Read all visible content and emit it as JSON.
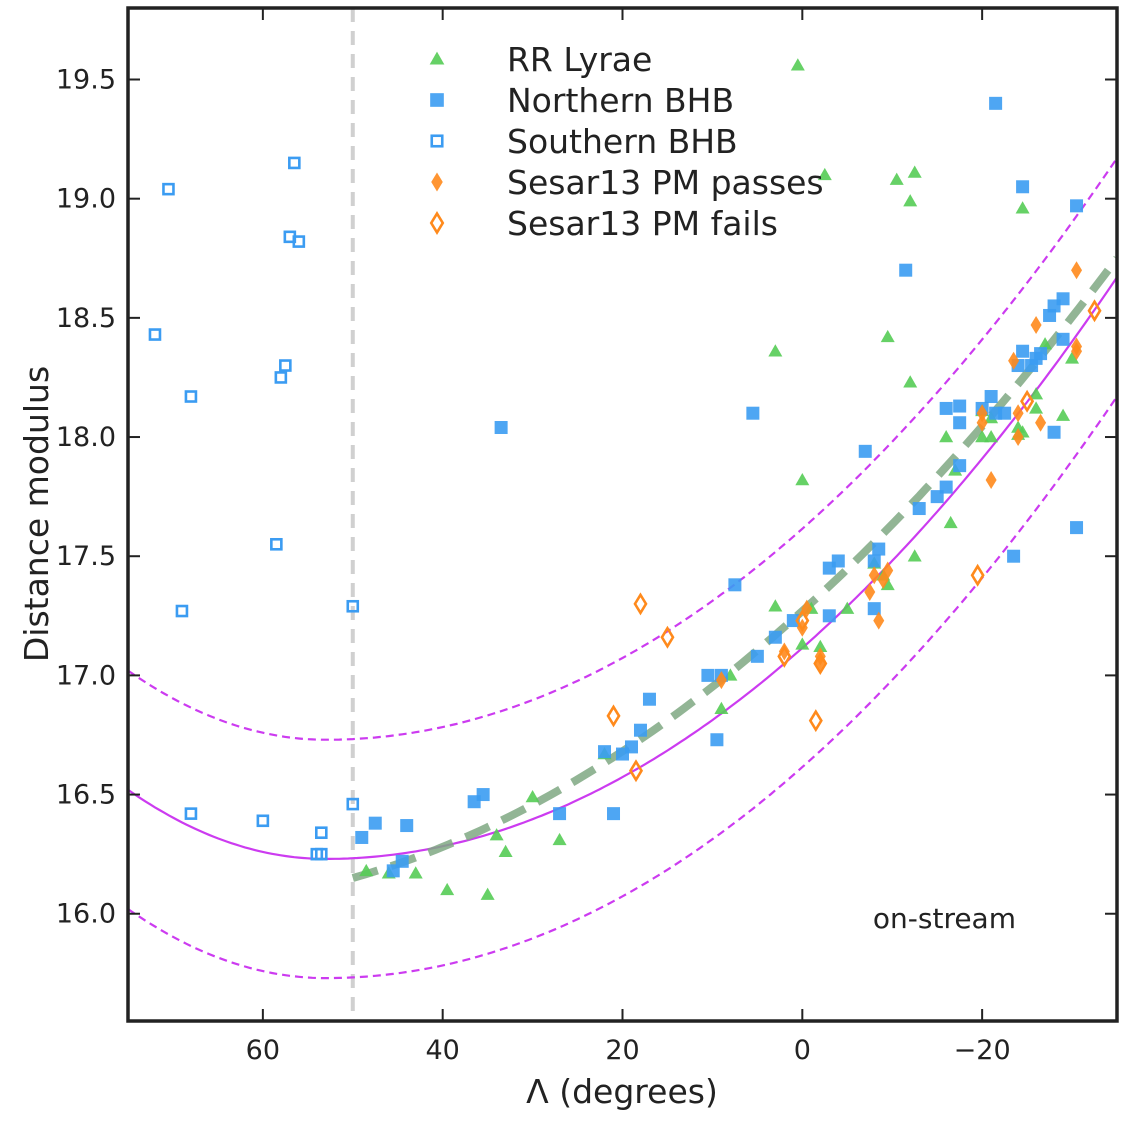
{
  "chart_data": {
    "type": "scatter",
    "xlabel": "Λ (degrees)",
    "ylabel": "Distance modulus",
    "xlim": [
      75,
      -35
    ],
    "ylim": [
      15.55,
      19.8
    ],
    "x_ticks": [
      60,
      40,
      20,
      0,
      -20
    ],
    "x_tick_labels": [
      "60",
      "40",
      "20",
      "0",
      "−20"
    ],
    "y_ticks": [
      16.0,
      16.5,
      17.0,
      17.5,
      18.0,
      18.5,
      19.0,
      19.5
    ],
    "y_tick_labels": [
      "16.0",
      "16.5",
      "17.0",
      "17.5",
      "18.0",
      "18.5",
      "19.0",
      "19.5"
    ],
    "grid": false,
    "legend_position": "top-center",
    "annotation": "on-stream",
    "vertical_line": {
      "x": 50,
      "style": "dashed",
      "color": "#d0d0d0"
    },
    "colors": {
      "rrl": "#55cc55",
      "bhb": "#3b9cf2",
      "sesar": "#ff8a1c",
      "model": "#cc3bf0",
      "fit": "#7fa882"
    },
    "series": [
      {
        "name": "RR Lyrae",
        "marker": "triangle",
        "filled": true,
        "points": [
          [
            0.5,
            19.56
          ],
          [
            -2.5,
            19.1
          ],
          [
            -10.5,
            19.08
          ],
          [
            -12.5,
            19.11
          ],
          [
            -12,
            18.99
          ],
          [
            -24.5,
            18.96
          ],
          [
            -9.5,
            18.42
          ],
          [
            3,
            18.36
          ],
          [
            -12,
            18.23
          ],
          [
            -27,
            18.39
          ],
          [
            -26,
            18.18
          ],
          [
            -30,
            18.33
          ],
          [
            -20,
            18.11
          ],
          [
            -21,
            18.08
          ],
          [
            -24,
            18.04
          ],
          [
            -20,
            18.0
          ],
          [
            -21,
            18.0
          ],
          [
            -16,
            18.0
          ],
          [
            -24,
            18.01
          ],
          [
            -29,
            18.09
          ],
          [
            -17,
            17.86
          ],
          [
            0,
            17.82
          ],
          [
            -16.5,
            17.64
          ],
          [
            -12.5,
            17.5
          ],
          [
            -9,
            17.42
          ],
          [
            -9.5,
            17.38
          ],
          [
            -8,
            17.47
          ],
          [
            3,
            17.29
          ],
          [
            -5,
            17.28
          ],
          [
            -1,
            17.28
          ],
          [
            0,
            17.13
          ],
          [
            -2,
            17.12
          ],
          [
            8,
            17.0
          ],
          [
            9,
            16.86
          ],
          [
            22,
            16.67
          ],
          [
            30,
            16.49
          ],
          [
            27,
            16.31
          ],
          [
            33,
            16.26
          ],
          [
            34,
            16.33
          ],
          [
            35,
            16.08
          ],
          [
            39.5,
            16.1
          ],
          [
            43,
            16.17
          ],
          [
            46,
            16.17
          ],
          [
            48.5,
            16.18
          ],
          [
            -24.5,
            18.02
          ],
          [
            -26,
            18.12
          ]
        ]
      },
      {
        "name": "Northern BHB",
        "marker": "square",
        "filled": true,
        "points": [
          [
            -21.5,
            19.4
          ],
          [
            -24.5,
            19.05
          ],
          [
            -30.5,
            18.97
          ],
          [
            -11.5,
            18.7
          ],
          [
            -29,
            18.58
          ],
          [
            -28,
            18.55
          ],
          [
            -27.5,
            18.51
          ],
          [
            -29,
            18.41
          ],
          [
            -24.5,
            18.36
          ],
          [
            -26.5,
            18.35
          ],
          [
            -25.5,
            18.3
          ],
          [
            -24,
            18.3
          ],
          [
            -26,
            18.33
          ],
          [
            -21,
            18.17
          ],
          [
            -21.5,
            18.1
          ],
          [
            -22.5,
            18.1
          ],
          [
            -20,
            18.12
          ],
          [
            -16,
            18.12
          ],
          [
            -17.5,
            18.13
          ],
          [
            -17.5,
            18.06
          ],
          [
            5.5,
            18.1
          ],
          [
            33.5,
            18.04
          ],
          [
            -7,
            17.94
          ],
          [
            -17.5,
            17.88
          ],
          [
            -16,
            17.79
          ],
          [
            -13,
            17.7
          ],
          [
            -15,
            17.75
          ],
          [
            -8.5,
            17.53
          ],
          [
            -8,
            17.48
          ],
          [
            -4,
            17.48
          ],
          [
            -3,
            17.45
          ],
          [
            -23.5,
            17.5
          ],
          [
            -30.5,
            17.62
          ],
          [
            -8,
            17.28
          ],
          [
            -3,
            17.25
          ],
          [
            7.5,
            17.38
          ],
          [
            1,
            17.23
          ],
          [
            3,
            17.16
          ],
          [
            5,
            17.08
          ],
          [
            10.5,
            17.0
          ],
          [
            9,
            17.0
          ],
          [
            17,
            16.9
          ],
          [
            9.5,
            16.73
          ],
          [
            18,
            16.77
          ],
          [
            19,
            16.7
          ],
          [
            20,
            16.67
          ],
          [
            22,
            16.68
          ],
          [
            21,
            16.42
          ],
          [
            27,
            16.42
          ],
          [
            35.5,
            16.5
          ],
          [
            36.5,
            16.47
          ],
          [
            44,
            16.37
          ],
          [
            47.5,
            16.38
          ],
          [
            49,
            16.32
          ],
          [
            45.5,
            16.18
          ],
          [
            44.5,
            16.22
          ],
          [
            -28,
            18.02
          ]
        ]
      },
      {
        "name": "Southern BHB",
        "marker": "square",
        "filled": false,
        "points": [
          [
            70.5,
            19.04
          ],
          [
            56.5,
            19.15
          ],
          [
            57,
            18.84
          ],
          [
            56,
            18.82
          ],
          [
            72,
            18.43
          ],
          [
            57.5,
            18.3
          ],
          [
            58,
            18.25
          ],
          [
            68,
            18.17
          ],
          [
            58.5,
            17.55
          ],
          [
            69,
            17.27
          ],
          [
            50,
            17.29
          ],
          [
            68,
            16.42
          ],
          [
            60,
            16.39
          ],
          [
            50,
            16.46
          ],
          [
            53.5,
            16.34
          ],
          [
            54,
            16.25
          ],
          [
            53.5,
            16.25
          ]
        ]
      },
      {
        "name": "Sesar13 PM passes",
        "marker": "diamond",
        "filled": true,
        "points": [
          [
            -30.5,
            18.7
          ],
          [
            -23.5,
            18.32
          ],
          [
            -26,
            18.47
          ],
          [
            -24,
            18.1
          ],
          [
            -26.5,
            18.06
          ],
          [
            -24,
            18.0
          ],
          [
            -20,
            18.1
          ],
          [
            -20,
            18.06
          ],
          [
            -21,
            17.82
          ],
          [
            -8,
            17.42
          ],
          [
            -9.5,
            17.44
          ],
          [
            -9,
            17.4
          ],
          [
            -7.5,
            17.35
          ],
          [
            -8.5,
            17.23
          ],
          [
            -0.5,
            17.28
          ],
          [
            0,
            17.2
          ],
          [
            2,
            17.1
          ],
          [
            -2,
            17.08
          ],
          [
            -2,
            17.06
          ],
          [
            9,
            16.98
          ],
          [
            -30.5,
            18.38
          ],
          [
            -30.5,
            18.36
          ]
        ]
      },
      {
        "name": "Sesar13 PM fails",
        "marker": "diamond",
        "filled": false,
        "points": [
          [
            -32.5,
            18.53
          ],
          [
            -25,
            18.15
          ],
          [
            -19.5,
            17.42
          ],
          [
            18,
            17.3
          ],
          [
            15,
            17.16
          ],
          [
            21,
            16.83
          ],
          [
            18.5,
            16.6
          ],
          [
            -1.5,
            16.81
          ],
          [
            -2,
            17.05
          ],
          [
            0,
            17.23
          ],
          [
            2,
            17.08
          ]
        ]
      }
    ],
    "lines": [
      {
        "name": "model-track",
        "style": "solid",
        "color": "#cc3bf0",
        "vertex": [
          53,
          16.23
        ],
        "points_at": [
          [
            75,
            16.52
          ],
          [
            -35,
            18.67
          ]
        ]
      },
      {
        "name": "model-upper",
        "style": "dashed",
        "color": "#cc3bf0",
        "offset": 0.5
      },
      {
        "name": "model-lower",
        "style": "dashed",
        "color": "#cc3bf0",
        "offset": -0.5
      },
      {
        "name": "fit-track",
        "style": "thick-dashed",
        "color": "#7fa882",
        "x_range": [
          50,
          -35
        ],
        "points": [
          [
            50,
            16.15
          ],
          [
            0,
            17.27
          ],
          [
            -35,
            18.75
          ]
        ]
      }
    ]
  }
}
